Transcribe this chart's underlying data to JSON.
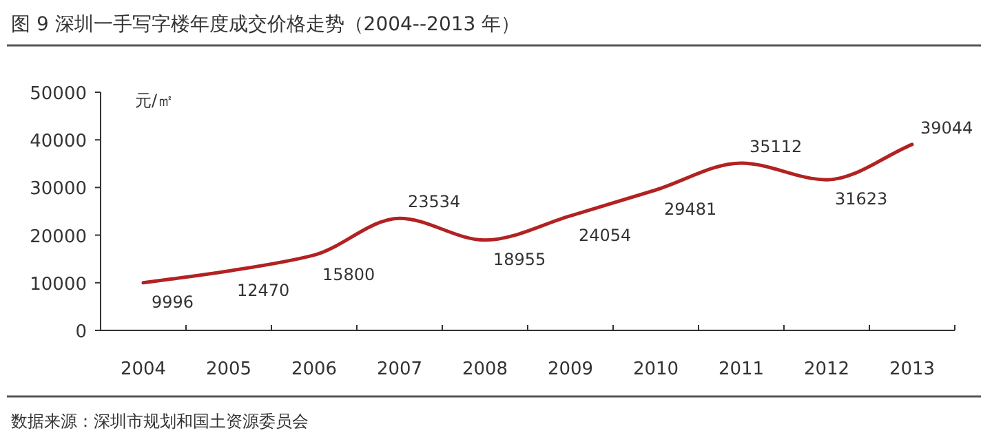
{
  "chart_data": {
    "type": "line",
    "title": "图 9 深圳一手写字楼年度成交价格走势（2004--2013 年）",
    "ylabel": "元/㎡",
    "categories": [
      "2004",
      "2005",
      "2006",
      "2007",
      "2008",
      "2009",
      "2010",
      "2011",
      "2012",
      "2013"
    ],
    "series": [
      {
        "color": "#b22222",
        "values": [
          9996,
          12470,
          15800,
          23534,
          18955,
          24054,
          29481,
          35112,
          31623,
          39044
        ]
      }
    ],
    "ylim": [
      0,
      50000
    ],
    "yticks": [
      0,
      10000,
      20000,
      30000,
      40000,
      50000
    ],
    "data_labels": true,
    "grid": false,
    "marker": "none",
    "line_style": "solid",
    "annotations": [
      "数据来源：深圳市规划和国土资源委员会"
    ]
  }
}
